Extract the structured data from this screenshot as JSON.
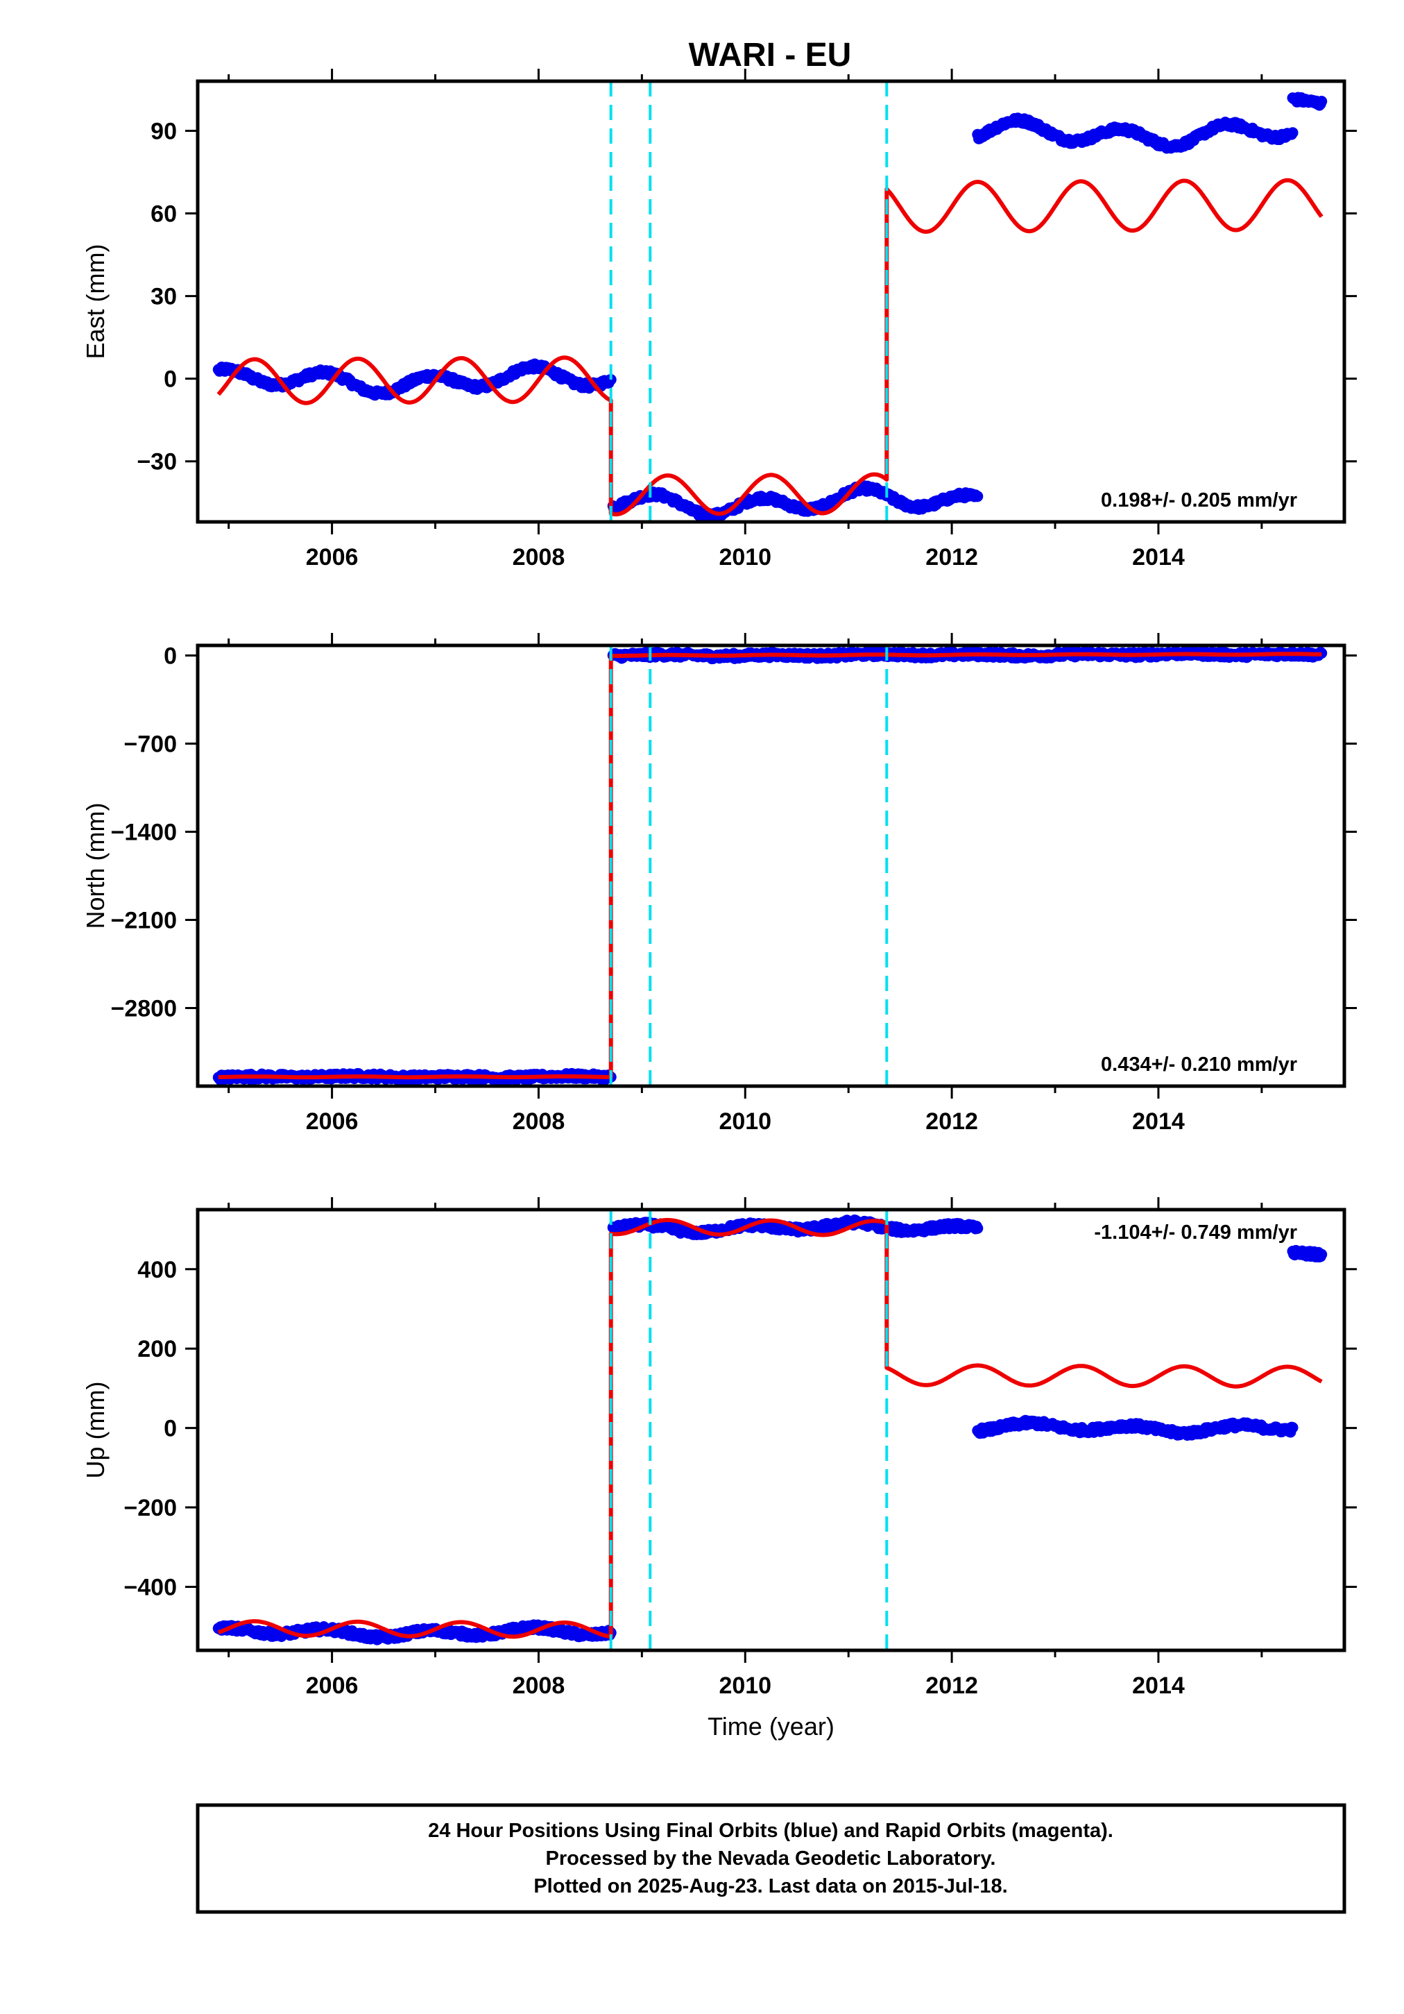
{
  "title": "WARI - EU",
  "footer": {
    "line1": "24 Hour Positions Using Final Orbits (blue) and Rapid Orbits (magenta).",
    "line2": "Processed by the Nevada Geodetic Laboratory.",
    "line3": "Plotted on 2025-Aug-23. Last data on 2015-Jul-18."
  },
  "colors": {
    "final_orbits": "#0000ee",
    "model": "#ee0000",
    "events": "#00e0f0",
    "frame": "#000000"
  },
  "chart_data": [
    {
      "type": "scatter",
      "name": "east",
      "ylabel": "East (mm)",
      "xlabel": "",
      "xlim": [
        2004.7,
        2015.8
      ],
      "ylim": [
        -52,
        108
      ],
      "xticks": [
        2006,
        2008,
        2010,
        2012,
        2014
      ],
      "xtick_labels": [
        "2006",
        "2008",
        "2010",
        "2012",
        "2014"
      ],
      "yticks": [
        -30,
        0,
        30,
        60,
        90
      ],
      "ytick_labels": [
        "−30",
        "0",
        "30",
        "60",
        "90"
      ],
      "rate_label": "0.198+/- 0.205 mm/yr",
      "event_lines": [
        2008.7,
        2009.08,
        2011.37
      ],
      "observations": [
        {
          "start": 2004.9,
          "end": 2008.7,
          "offset": 0,
          "slope": 0.2,
          "amp": 3,
          "phase": 0.3
        },
        {
          "start": 2008.72,
          "end": 2012.25,
          "offset": -45,
          "slope": 0.3,
          "amp": 3,
          "phase": 0.1
        },
        {
          "start": 2012.25,
          "end": 2015.3,
          "offset": 89,
          "slope": 0.0,
          "amp": 3,
          "phase": 0.6
        },
        {
          "start": 2015.3,
          "end": 2015.58,
          "offset": 101,
          "slope": 0.0,
          "amp": 1,
          "phase": 0.0
        }
      ],
      "model": [
        {
          "start": 2004.9,
          "end": 2008.7,
          "offset": 0,
          "slope": 0.2,
          "amp": 8,
          "phase": 0.0
        },
        {
          "start": 2008.7,
          "end": 2011.37,
          "offset": -42,
          "slope": 0.2,
          "amp": 7,
          "phase": 0.0
        },
        {
          "start": 2011.37,
          "end": 2015.58,
          "offset": 62,
          "slope": 0.2,
          "amp": 9,
          "phase": 0.0
        }
      ]
    },
    {
      "type": "scatter",
      "name": "north",
      "ylabel": "North (mm)",
      "xlabel": "",
      "xlim": [
        2004.7,
        2015.8
      ],
      "ylim": [
        -3420,
        80
      ],
      "xticks": [
        2006,
        2008,
        2010,
        2012,
        2014
      ],
      "xtick_labels": [
        "2006",
        "2008",
        "2010",
        "2012",
        "2014"
      ],
      "yticks": [
        -2800,
        -2100,
        -1400,
        -700,
        0
      ],
      "ytick_labels": [
        "−2800",
        "−2100",
        "−1400",
        "−700",
        "0"
      ],
      "rate_label": "0.434+/- 0.210 mm/yr",
      "event_lines": [
        2008.7,
        2009.08,
        2011.37
      ],
      "observations": [
        {
          "start": 2004.9,
          "end": 2008.7,
          "offset": -3345,
          "slope": 0.4,
          "amp": 4,
          "phase": 0.0
        },
        {
          "start": 2008.72,
          "end": 2015.58,
          "offset": 2,
          "slope": 1.5,
          "amp": 5,
          "phase": 0.0
        }
      ],
      "model": [
        {
          "start": 2004.9,
          "end": 2008.7,
          "offset": -3345,
          "slope": 0.4,
          "amp": 3,
          "phase": 0.0
        },
        {
          "start": 2008.7,
          "end": 2015.58,
          "offset": 2,
          "slope": 1.5,
          "amp": 3,
          "phase": 0.0
        }
      ]
    },
    {
      "type": "scatter",
      "name": "up",
      "ylabel": "Up (mm)",
      "xlabel": "Time (year)",
      "xlim": [
        2004.7,
        2015.8
      ],
      "ylim": [
        -560,
        550
      ],
      "xticks": [
        2006,
        2008,
        2010,
        2012,
        2014
      ],
      "xtick_labels": [
        "2006",
        "2008",
        "2010",
        "2012",
        "2014"
      ],
      "yticks": [
        -400,
        -200,
        0,
        200,
        400
      ],
      "ytick_labels": [
        "−400",
        "−200",
        "0",
        "200",
        "400"
      ],
      "rate_label": "-1.104+/- 0.749 mm/yr",
      "event_lines": [
        2008.7,
        2009.08,
        2011.37
      ],
      "observations": [
        {
          "start": 2004.9,
          "end": 2008.7,
          "offset": -515,
          "slope": 0.0,
          "amp": 8,
          "phase": 0.3
        },
        {
          "start": 2008.72,
          "end": 2012.25,
          "offset": 505,
          "slope": 0.0,
          "amp": 8,
          "phase": 0.2
        },
        {
          "start": 2012.25,
          "end": 2015.3,
          "offset": 0,
          "slope": 0.0,
          "amp": 8,
          "phase": 0.5
        },
        {
          "start": 2015.3,
          "end": 2015.58,
          "offset": 440,
          "slope": 0.0,
          "amp": 3,
          "phase": 0.0
        }
      ],
      "model": [
        {
          "start": 2004.9,
          "end": 2008.7,
          "offset": -510,
          "slope": -1.1,
          "amp": 18,
          "phase": 0.0
        },
        {
          "start": 2008.7,
          "end": 2011.37,
          "offset": 505,
          "slope": -1.1,
          "amp": 18,
          "phase": 0.0
        },
        {
          "start": 2011.37,
          "end": 2015.58,
          "offset": 135,
          "slope": -1.1,
          "amp": 25,
          "phase": 0.0
        }
      ]
    }
  ]
}
